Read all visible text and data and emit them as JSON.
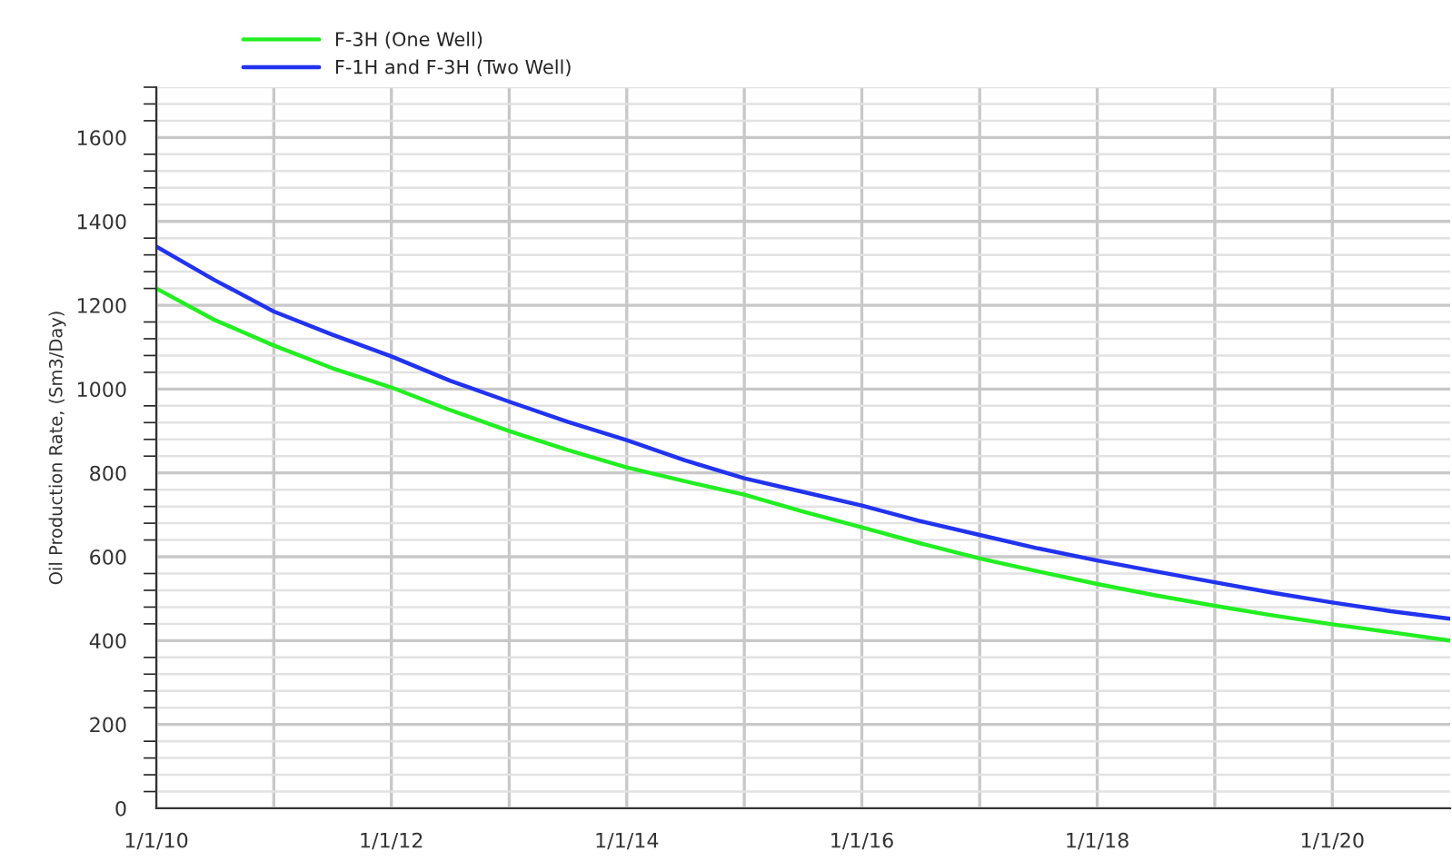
{
  "chart_data": {
    "type": "line",
    "ylabel": "Oil Production Rate, (Sm3/Day)",
    "x": [
      "2010-01-01",
      "2010-07-01",
      "2011-01-01",
      "2011-07-01",
      "2012-01-01",
      "2012-07-01",
      "2013-01-01",
      "2013-07-01",
      "2014-01-01",
      "2014-07-01",
      "2015-01-01",
      "2015-07-01",
      "2016-01-01",
      "2016-07-01",
      "2017-01-01",
      "2017-07-01",
      "2018-01-01",
      "2018-07-01",
      "2019-01-01",
      "2019-07-01",
      "2020-01-01",
      "2020-07-01",
      "2021-01-01"
    ],
    "series": [
      {
        "name": "F-3H (One Well)",
        "color": "#22ee22",
        "values": [
          1240,
          1165,
          1104,
          1050,
          1004,
          950,
          900,
          855,
          813,
          780,
          748,
          708,
          670,
          632,
          596,
          565,
          535,
          508,
          483,
          460,
          439,
          420,
          400
        ]
      },
      {
        "name": "F-1H and F-3H (Two Well)",
        "color": "#2233ee",
        "values": [
          1340,
          1260,
          1185,
          1130,
          1078,
          1020,
          970,
          922,
          878,
          830,
          787,
          755,
          722,
          685,
          652,
          620,
          591,
          565,
          539,
          514,
          491,
          470,
          452
        ]
      }
    ],
    "xlim": [
      "2010-01-01",
      "2021-01-01"
    ],
    "xticks": [
      {
        "value": "2010-01-01",
        "label": "1/1/10"
      },
      {
        "value": "2011-01-01",
        "label": null
      },
      {
        "value": "2012-01-01",
        "label": "1/1/12"
      },
      {
        "value": "2013-01-01",
        "label": null
      },
      {
        "value": "2014-01-01",
        "label": "1/1/14"
      },
      {
        "value": "2015-01-01",
        "label": null
      },
      {
        "value": "2016-01-01",
        "label": "1/1/16"
      },
      {
        "value": "2017-01-01",
        "label": null
      },
      {
        "value": "2018-01-01",
        "label": "1/1/18"
      },
      {
        "value": "2019-01-01",
        "label": null
      },
      {
        "value": "2020-01-01",
        "label": "1/1/20"
      }
    ],
    "ylim": [
      0,
      1720
    ],
    "yticks": [
      0,
      200,
      400,
      600,
      800,
      1000,
      1200,
      1400,
      1600
    ],
    "grid": true,
    "legend": "top left",
    "marker": "none",
    "line_style": "solid"
  }
}
